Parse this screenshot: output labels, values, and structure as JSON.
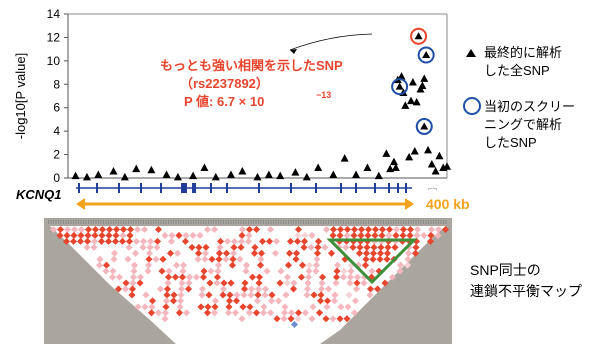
{
  "chart_data": {
    "type": "scatter",
    "xlabel": "",
    "ylabel": "-log10[P value]",
    "ylim": [
      0,
      14
    ],
    "yticks": [
      "0",
      "2",
      "4",
      "6",
      "8",
      "10",
      "12",
      "14"
    ],
    "grid": false,
    "legend_position": "right",
    "colors": {
      "accent": "#e8452e",
      "circle_top": "#e8452e",
      "circle_screen": "#1f4fa8",
      "scale_bar": "#f3a31b",
      "gene": "#1f3f9a",
      "ld_high": "#e8452e",
      "ld_low": "#f4b7bd",
      "ld_frame": "#3d8f3a"
    },
    "series": [
      {
        "name": "最終的に解析した全SNP",
        "marker": "triangle",
        "points": [
          [
            2,
            0.2
          ],
          [
            5,
            0.1
          ],
          [
            8,
            0.3
          ],
          [
            12,
            0.6
          ],
          [
            15,
            0.1
          ],
          [
            18,
            0.8
          ],
          [
            22,
            0.7
          ],
          [
            26,
            0.3
          ],
          [
            29,
            0.1
          ],
          [
            33,
            0.2
          ],
          [
            36,
            0.9
          ],
          [
            39,
            0.1
          ],
          [
            43,
            0.3
          ],
          [
            46,
            0.6
          ],
          [
            50,
            0.1
          ],
          [
            53,
            0.3
          ],
          [
            56,
            0.2
          ],
          [
            60,
            0.5
          ],
          [
            63,
            0.1
          ],
          [
            66,
            0.9
          ],
          [
            70,
            0.3
          ],
          [
            73,
            1.7
          ],
          [
            76,
            0.3
          ],
          [
            79,
            0.9
          ],
          [
            82,
            0.2
          ],
          [
            84,
            2.1
          ],
          [
            85,
            0.8
          ],
          [
            86,
            1.4
          ],
          [
            86.5,
            0.9
          ],
          [
            87,
            8.4
          ],
          [
            88,
            8.7
          ],
          [
            88.5,
            7.3
          ],
          [
            89,
            6.2
          ],
          [
            90,
            1.8
          ],
          [
            90.5,
            6.6
          ],
          [
            91,
            8.2
          ],
          [
            91.5,
            2.3
          ],
          [
            92,
            6.5
          ],
          [
            93,
            7.6
          ],
          [
            93.5,
            7.9
          ],
          [
            94,
            8.5
          ],
          [
            95,
            2.4
          ],
          [
            96,
            1.2
          ],
          [
            97,
            0.6
          ],
          [
            98,
            1.9
          ],
          [
            99,
            0.9
          ],
          [
            100,
            1.0
          ]
        ]
      },
      {
        "name": "当初のスクリーニングで解析したSNP",
        "marker": "circle",
        "points": [
          [
            87.5,
            7.8
          ],
          [
            92.5,
            12.1
          ],
          [
            94.5,
            10.5
          ],
          [
            94,
            4.4
          ]
        ]
      }
    ],
    "annotations": [
      {
        "lines": [
          "もっとも強い相関を示したSNP",
          "（rs2237892）",
          "P 値: 6.7 × 10",
          "−13"
        ]
      }
    ],
    "gene_label": "KCNQ1",
    "scale_label": "400 kb",
    "ld_map_label": [
      "SNP同士の",
      "連鎖不平衡マップ"
    ]
  }
}
